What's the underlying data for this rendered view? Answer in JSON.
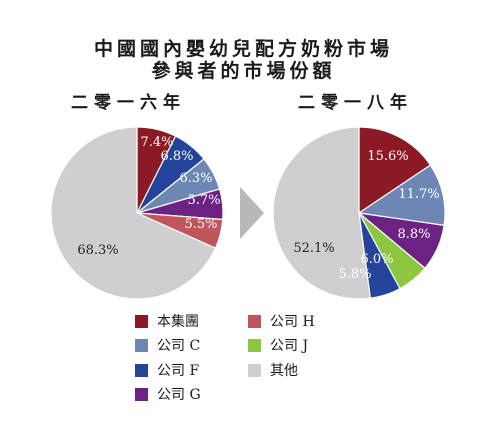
{
  "header": {
    "title_line1": "中國國內嬰幼兒配方奶粉市場",
    "title_line2": "參與者的市場份額"
  },
  "colors": {
    "company_self": "#8b1a24",
    "company_c": "#6d86b4",
    "company_f": "#23449a",
    "company_g": "#6b2283",
    "company_h": "#c0555c",
    "company_j": "#8dc63f",
    "others": "#cfcfd1",
    "arrow": "#b9b9b9"
  },
  "chart_data": [
    {
      "type": "pie",
      "title": "二零一六年",
      "slices": [
        {
          "name": "本集團",
          "value": 7.4,
          "label": "7.4%",
          "color_key": "company_self"
        },
        {
          "name": "公司 F",
          "value": 6.8,
          "label": "6.8%",
          "color_key": "company_f"
        },
        {
          "name": "公司 C",
          "value": 6.3,
          "label": "6.3%",
          "color_key": "company_c"
        },
        {
          "name": "公司 G",
          "value": 5.7,
          "label": "5.7%",
          "color_key": "company_g"
        },
        {
          "name": "公司 H",
          "value": 5.5,
          "label": "5.5%",
          "color_key": "company_h"
        },
        {
          "name": "其他",
          "value": 68.3,
          "label": "68.3%",
          "color_key": "others"
        }
      ]
    },
    {
      "type": "pie",
      "title": "二零一八年",
      "slices": [
        {
          "name": "本集團",
          "value": 15.6,
          "label": "15.6%",
          "color_key": "company_self"
        },
        {
          "name": "公司 C",
          "value": 11.7,
          "label": "11.7%",
          "color_key": "company_c"
        },
        {
          "name": "公司 G",
          "value": 8.8,
          "label": "8.8%",
          "color_key": "company_g"
        },
        {
          "name": "公司 J",
          "value": 6.0,
          "label": "6.0%",
          "color_key": "company_j"
        },
        {
          "name": "公司 F",
          "value": 5.8,
          "label": "5.8%",
          "color_key": "company_f"
        },
        {
          "name": "其他",
          "value": 52.1,
          "label": "52.1%",
          "color_key": "others"
        }
      ]
    }
  ],
  "legend": [
    {
      "label": "本集團",
      "color_key": "company_self"
    },
    {
      "label": "公司 C",
      "color_key": "company_c"
    },
    {
      "label": "公司 F",
      "color_key": "company_f"
    },
    {
      "label": "公司 G",
      "color_key": "company_g"
    },
    {
      "label": "公司 H",
      "color_key": "company_h"
    },
    {
      "label": "公司 J",
      "color_key": "company_j"
    },
    {
      "label": "其他",
      "color_key": "others"
    }
  ]
}
